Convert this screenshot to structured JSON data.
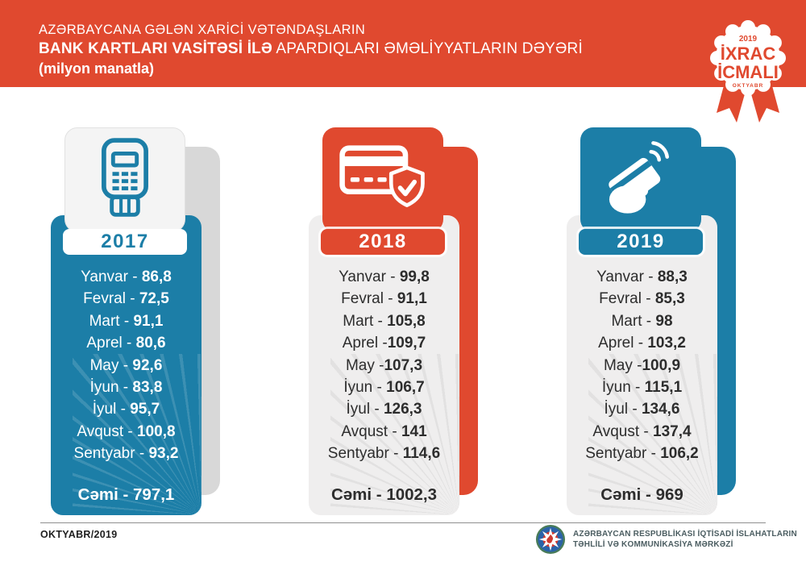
{
  "header": {
    "bg": "#E0492F",
    "title_line1": "AZƏRBAYCANA GƏLƏN XARİCİ VƏTƏNDAŞLARIN",
    "title_line2_bold": "BANK KARTLARI VASİTƏSİ İLƏ",
    "title_line2_rest": " APARDIQLARI ƏMƏLİYYATLARIN DƏYƏRİ",
    "title_line3": "(milyon manatla)",
    "badge": {
      "year": "2019",
      "word1": "İXRAC",
      "word2": "İCMALI",
      "month": "OKTYABR",
      "accent": "#E0492F"
    }
  },
  "columns": [
    {
      "year": "2017",
      "icon": "pos-terminal-icon",
      "months": [
        {
          "m": "Yanvar",
          "sep": " - ",
          "v": "86,8"
        },
        {
          "m": "Fevral",
          "sep": " - ",
          "v": "72,5"
        },
        {
          "m": "Mart",
          "sep": " - ",
          "v": "91,1"
        },
        {
          "m": "Aprel",
          "sep": " - ",
          "v": "80,6"
        },
        {
          "m": "May",
          "sep": " - ",
          "v": "92,6"
        },
        {
          "m": "İyun",
          "sep": " - ",
          "v": "83,8"
        },
        {
          "m": "İyul",
          "sep": " - ",
          "v": "95,7"
        },
        {
          "m": "Avqust",
          "sep": " - ",
          "v": "100,8"
        },
        {
          "m": "Sentyabr",
          "sep": " - ",
          "v": "93,2"
        }
      ],
      "total": {
        "label": "Cəmi",
        "sep": " - ",
        "value": "797,1"
      },
      "theme": {
        "panel_bg": "#1C7EA7",
        "panel_text": "#FFFFFF",
        "icon_bg": "#F4F4F4",
        "icon_fg": "#1C7EA7",
        "icon_border": "#E2E2E2",
        "label_bg": "#FFFFFF",
        "label_text": "#1C7EA7",
        "label_ring": "none",
        "shadow": "#D8D8D8",
        "rays": "rgba(255,255,255,0.14)"
      }
    },
    {
      "year": "2018",
      "icon": "card-shield-icon",
      "months": [
        {
          "m": "Yanvar",
          "sep": " - ",
          "v": "99,8"
        },
        {
          "m": "Fevral",
          "sep": " - ",
          "v": "91,1"
        },
        {
          "m": "Mart",
          "sep": " - ",
          "v": "105,8"
        },
        {
          "m": "Aprel",
          "sep": " -",
          "v": "109,7"
        },
        {
          "m": "May",
          "sep": " -",
          "v": "107,3"
        },
        {
          "m": "İyun",
          "sep": " - ",
          "v": "106,7"
        },
        {
          "m": "İyul",
          "sep": " - ",
          "v": "126,3"
        },
        {
          "m": "Avqust",
          "sep": " - ",
          "v": "141"
        },
        {
          "m": "Sentyabr",
          "sep": " - ",
          "v": "114,6"
        }
      ],
      "total": {
        "label": "Cəmi",
        "sep": " - ",
        "value": "1002,3"
      },
      "theme": {
        "panel_bg": "#EFEEEE",
        "panel_text": "#2D2D2D",
        "icon_bg": "#E0492F",
        "icon_fg": "#FFFFFF",
        "icon_border": "transparent",
        "label_bg": "#E0492F",
        "label_text": "#FFFFFF",
        "label_ring": "0 0 0 3px rgba(255,255,255,0.85)",
        "shadow": "#E0492F",
        "rays": "rgba(0,0,0,0.055)"
      }
    },
    {
      "year": "2019",
      "icon": "contactless-payment-icon",
      "months": [
        {
          "m": "Yanvar",
          "sep": " - ",
          "v": "88,3"
        },
        {
          "m": "Fevral",
          "sep": " - ",
          "v": "85,3"
        },
        {
          "m": "Mart",
          "sep": " - ",
          "v": "98"
        },
        {
          "m": "Aprel",
          "sep": " - ",
          "v": "103,2"
        },
        {
          "m": "May",
          "sep": " -",
          "v": "100,9"
        },
        {
          "m": "İyun",
          "sep": " - ",
          "v": "115,1"
        },
        {
          "m": "İyul",
          "sep": " - ",
          "v": "134,6"
        },
        {
          "m": "Avqust",
          "sep": " - ",
          "v": "137,4"
        },
        {
          "m": "Sentyabr",
          "sep": " - ",
          "v": "106,2"
        }
      ],
      "total": {
        "label": "Cəmi",
        "sep": " - ",
        "value": "969"
      },
      "theme": {
        "panel_bg": "#EFEEEE",
        "panel_text": "#2D2D2D",
        "icon_bg": "#1C7EA7",
        "icon_fg": "#FFFFFF",
        "icon_border": "transparent",
        "label_bg": "#1C7EA7",
        "label_text": "#FFFFFF",
        "label_ring": "0 0 0 3px rgba(255,255,255,0.85)",
        "shadow": "#1C7EA7",
        "rays": "rgba(0,0,0,0.055)"
      }
    }
  ],
  "footer": {
    "date": "OKTYABR/2019",
    "org_line1": "AZƏRBAYCAN RESPUBLİKASI İQTİSADİ İSLAHATLARIN",
    "org_line2": "TƏHLİLİ VƏ KOMMUNİKASİYA MƏRKƏZİ"
  },
  "chart_data": {
    "type": "table",
    "title": "AZƏRBAYCANA GƏLƏN XARİCİ VƏTƏNDAŞLARIN BANK KARTLARI VASİTƏSİ İLƏ APARDIQLARI ƏMƏLİYYATLARIN DƏYƏRİ",
    "unit": "milyon manatla",
    "categories": [
      "Yanvar",
      "Fevral",
      "Mart",
      "Aprel",
      "May",
      "İyun",
      "İyul",
      "Avqust",
      "Sentyabr"
    ],
    "series": [
      {
        "name": "2017",
        "values": [
          86.8,
          72.5,
          91.1,
          80.6,
          92.6,
          83.8,
          95.7,
          100.8,
          93.2
        ],
        "total": 797.1
      },
      {
        "name": "2018",
        "values": [
          99.8,
          91.1,
          105.8,
          109.7,
          107.3,
          106.7,
          126.3,
          141,
          114.6
        ],
        "total": 1002.3
      },
      {
        "name": "2019",
        "values": [
          88.3,
          85.3,
          98,
          103.2,
          100.9,
          115.1,
          134.6,
          137.4,
          106.2
        ],
        "total": 969
      }
    ]
  }
}
